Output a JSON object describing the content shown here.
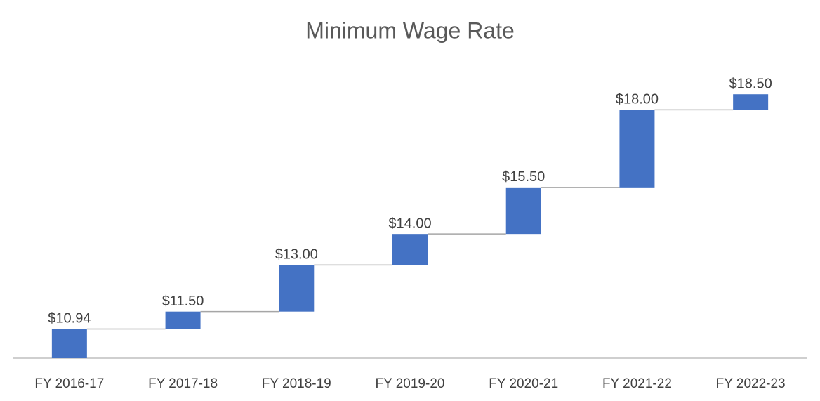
{
  "chart_data": {
    "type": "waterfall",
    "title": "Minimum Wage Rate",
    "categories": [
      "FY 2016-17",
      "FY 2017-18",
      "FY 2018-19",
      "FY 2019-20",
      "FY 2020-21",
      "FY 2021-22",
      "FY 2022-23"
    ],
    "values": [
      10.94,
      11.5,
      13,
      14,
      15.5,
      18,
      18.5
    ],
    "value_labels": [
      "$10.94",
      "$11.50",
      "$13.00",
      "$14.00",
      "$15.50",
      "$18.00",
      "$18.50"
    ],
    "color": "#4472c4",
    "ylim": [
      10,
      19.5
    ]
  }
}
